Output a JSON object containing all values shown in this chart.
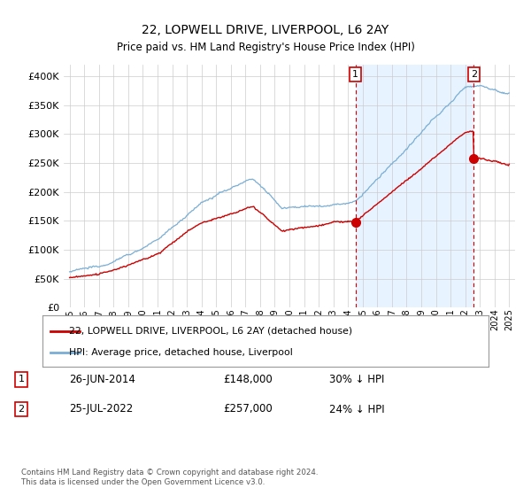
{
  "title": "22, LOPWELL DRIVE, LIVERPOOL, L6 2AY",
  "subtitle": "Price paid vs. HM Land Registry's House Price Index (HPI)",
  "hpi_color": "#7aaed4",
  "hpi_fill_color": "#ddeeff",
  "price_color": "#cc0000",
  "vline_color": "#cc0000",
  "marker_color": "#cc0000",
  "ylim": [
    0,
    420000
  ],
  "yticks": [
    0,
    50000,
    100000,
    150000,
    200000,
    250000,
    300000,
    350000,
    400000
  ],
  "ytick_labels": [
    "£0",
    "£50K",
    "£100K",
    "£150K",
    "£200K",
    "£250K",
    "£300K",
    "£350K",
    "£400K"
  ],
  "legend_line1": "22, LOPWELL DRIVE, LIVERPOOL, L6 2AY (detached house)",
  "legend_line2": "HPI: Average price, detached house, Liverpool",
  "annotation1_label": "1",
  "annotation1_date": "26-JUN-2014",
  "annotation1_price": "£148,000",
  "annotation1_hpi": "30% ↓ HPI",
  "annotation2_label": "2",
  "annotation2_date": "25-JUL-2022",
  "annotation2_price": "£257,000",
  "annotation2_hpi": "24% ↓ HPI",
  "footnote": "Contains HM Land Registry data © Crown copyright and database right 2024.\nThis data is licensed under the Open Government Licence v3.0.",
  "sale1_year": 2014.5,
  "sale1_value": 148000,
  "sale2_year": 2022.58,
  "sale2_value": 257000,
  "xstart": 1995,
  "xend": 2025
}
